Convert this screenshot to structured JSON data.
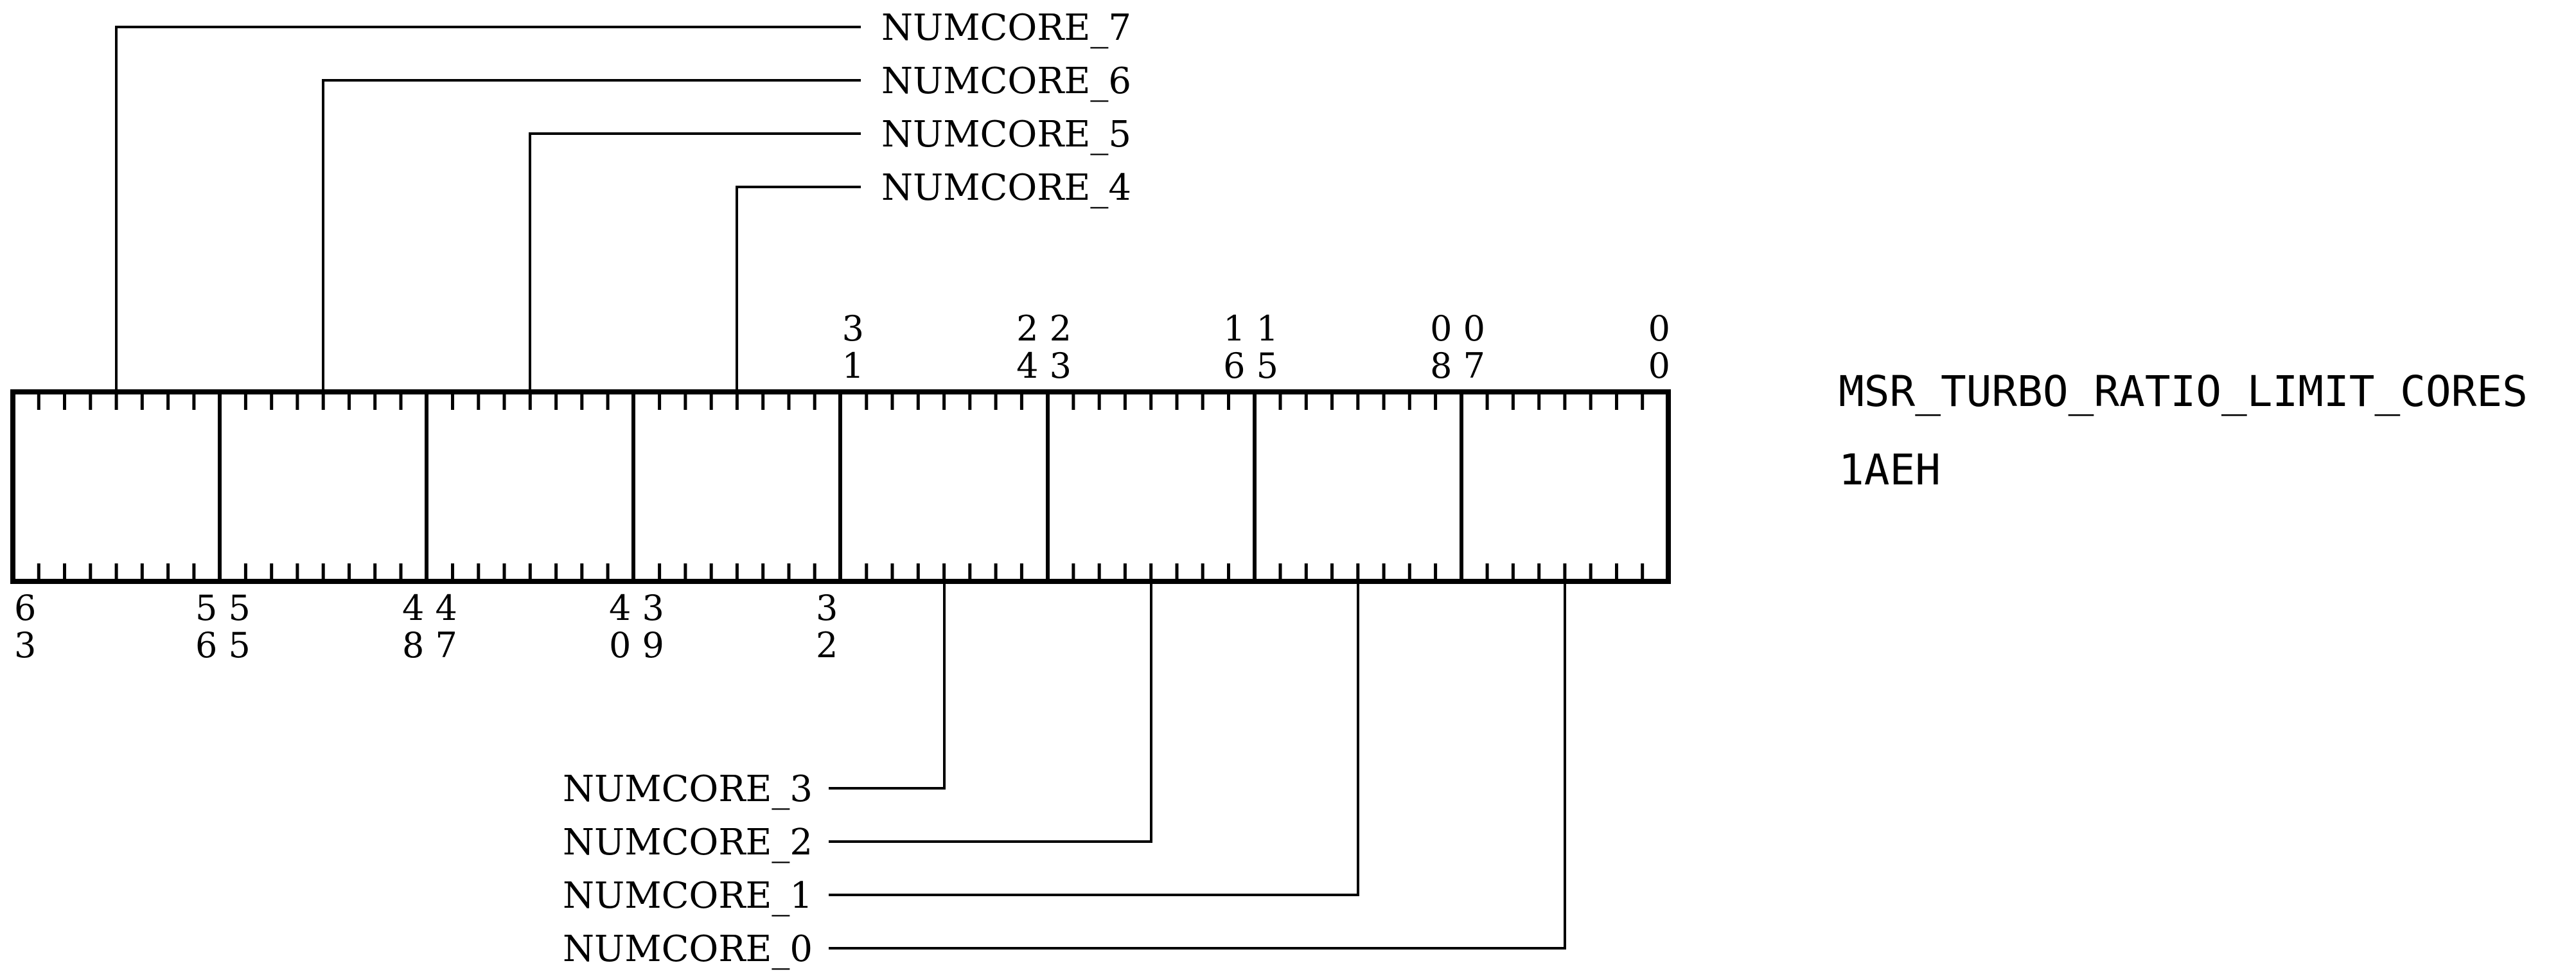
{
  "register": {
    "name": "MSR_TURBO_RATIO_LIMIT_CORES",
    "address": "1AEH"
  },
  "top_bit_numbers": [
    {
      "line1": "3",
      "line2": "1"
    },
    {
      "line1": "2 2",
      "line2": "4 3"
    },
    {
      "line1": "1 1",
      "line2": "6 5"
    },
    {
      "line1": "0 0",
      "line2": "8 7"
    },
    {
      "line1": "0",
      "line2": "0"
    }
  ],
  "bottom_bit_numbers": [
    {
      "line1": "6",
      "line2": "3"
    },
    {
      "line1": "5 5",
      "line2": "6 5"
    },
    {
      "line1": "4 4",
      "line2": "8 7"
    },
    {
      "line1": "4 3",
      "line2": "0 9"
    },
    {
      "line1": "3",
      "line2": "2"
    }
  ],
  "fields_top": [
    {
      "label": "NUMCORE_7"
    },
    {
      "label": "NUMCORE_6"
    },
    {
      "label": "NUMCORE_5"
    },
    {
      "label": "NUMCORE_4"
    }
  ],
  "fields_bottom": [
    {
      "label": "NUMCORE_3"
    },
    {
      "label": "NUMCORE_2"
    },
    {
      "label": "NUMCORE_1"
    },
    {
      "label": "NUMCORE_0"
    }
  ],
  "colors": {
    "stroke": "#000000",
    "background": "#ffffff"
  }
}
